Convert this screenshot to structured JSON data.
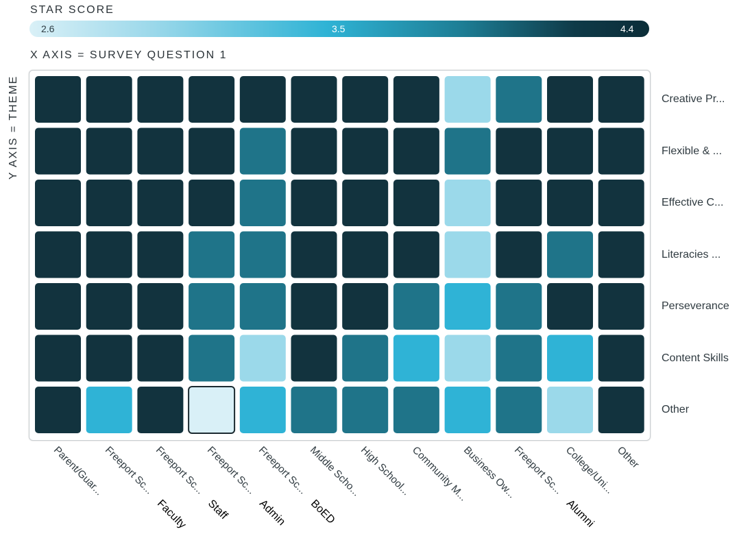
{
  "legend": {
    "title": "STAR SCORE",
    "min_label": "2.6",
    "mid_label": "3.5",
    "max_label": "4.4"
  },
  "axes": {
    "x_title": "X AXIS = SURVEY QUESTION 1",
    "y_title": "Y AXIS = THEME"
  },
  "chart_data": {
    "type": "heatmap",
    "x_categories": [
      "Parent/Guar...",
      "Freeport Sc...",
      "Freeport Sc...",
      "Freeport Sc...",
      "Freeport Sc...",
      "Middle Scho...",
      "High School...",
      "Community M...",
      "Business Ow...",
      "Freeport Sc...",
      "College/Uni...",
      "Other"
    ],
    "x_annotations": [
      "Faculty",
      "Staff",
      "Admin",
      "BoED",
      "Alumni"
    ],
    "y_categories": [
      "Creative Pr...",
      "Flexible & ...",
      "Effective C...",
      "Literacies ...",
      "Perseverance",
      "Content Skills",
      "Other"
    ],
    "color_scale": {
      "min": 2.6,
      "mid": 3.5,
      "max": 4.4
    },
    "values": [
      [
        4.4,
        4.4,
        4.4,
        4.4,
        4.4,
        4.4,
        4.4,
        4.4,
        3.0,
        3.8,
        4.4,
        4.4
      ],
      [
        4.4,
        4.4,
        4.4,
        4.4,
        3.8,
        4.4,
        4.4,
        4.4,
        3.8,
        4.4,
        4.4,
        4.4
      ],
      [
        4.4,
        4.4,
        4.4,
        4.4,
        3.8,
        4.4,
        4.4,
        4.4,
        3.0,
        4.4,
        4.4,
        4.4
      ],
      [
        4.4,
        4.4,
        4.4,
        3.8,
        3.8,
        4.4,
        4.4,
        4.4,
        3.0,
        4.4,
        3.8,
        4.4
      ],
      [
        4.4,
        4.4,
        4.4,
        3.8,
        3.8,
        4.4,
        4.4,
        3.8,
        3.5,
        3.8,
        4.4,
        4.4
      ],
      [
        4.4,
        4.4,
        4.4,
        3.8,
        3.0,
        4.4,
        3.8,
        3.5,
        3.0,
        3.8,
        3.5,
        4.4
      ],
      [
        4.4,
        3.5,
        4.4,
        2.6,
        3.5,
        3.8,
        3.8,
        3.8,
        3.5,
        3.8,
        3.0,
        4.4
      ]
    ],
    "selected_cell": {
      "row": 6,
      "col": 3
    }
  }
}
